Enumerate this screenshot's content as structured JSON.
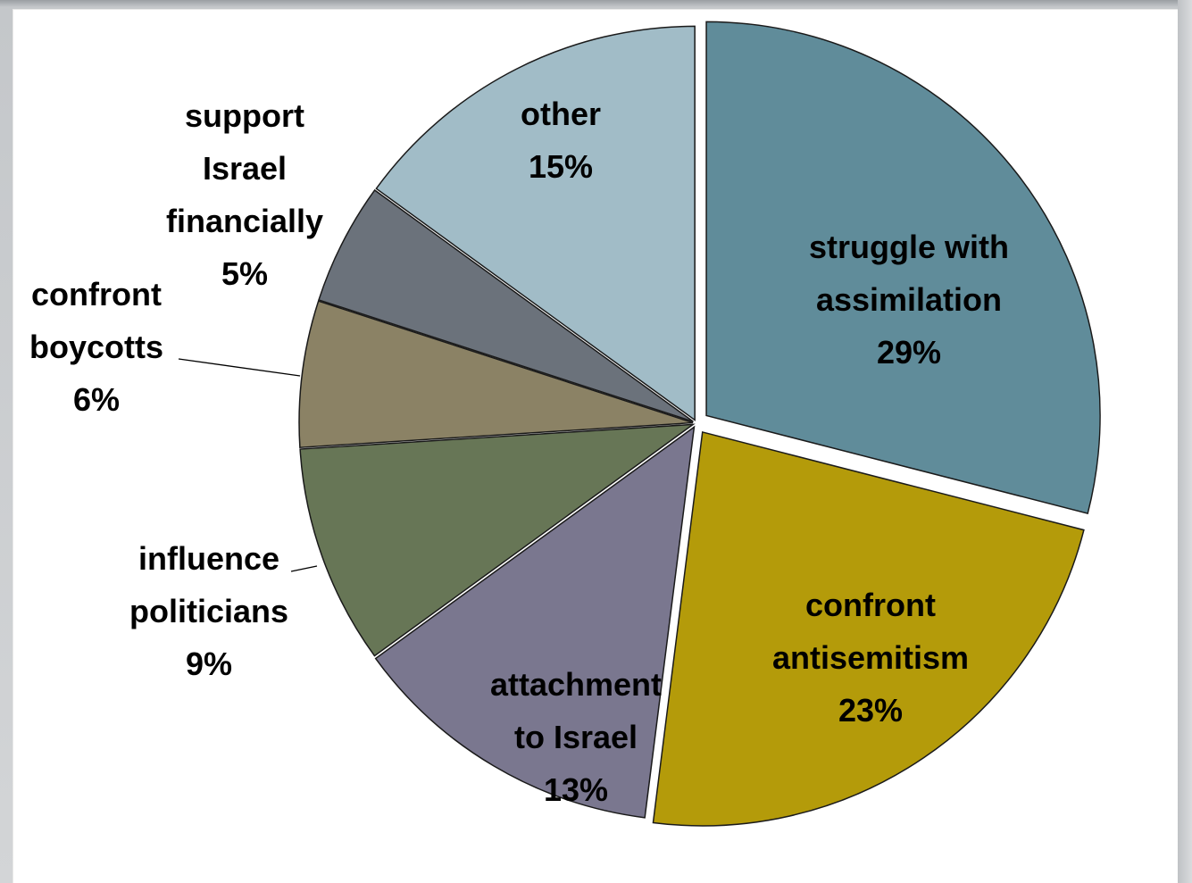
{
  "chart_data": {
    "type": "pie",
    "title": "",
    "slices": [
      {
        "label_lines": [
          "struggle with",
          "assimilation",
          "29%"
        ],
        "value": 29,
        "color": "#608c9a"
      },
      {
        "label_lines": [
          "confront",
          "antisemitism",
          "23%"
        ],
        "value": 23,
        "color": "#b49b0a"
      },
      {
        "label_lines": [
          "attachment",
          "to Israel",
          "13%"
        ],
        "value": 13,
        "color": "#7a778f"
      },
      {
        "label_lines": [
          "influence",
          "politicians",
          "9%"
        ],
        "value": 9,
        "color": "#677656"
      },
      {
        "label_lines": [
          "confront",
          "boycotts",
          "6%"
        ],
        "value": 6,
        "color": "#8b8265"
      },
      {
        "label_lines": [
          "support",
          "Israel",
          "financially",
          "5%"
        ],
        "value": 5,
        "color": "#6b727b"
      },
      {
        "label_lines": [
          "other",
          "15%"
        ],
        "value": 15,
        "color": "#a1bcc7"
      }
    ]
  }
}
